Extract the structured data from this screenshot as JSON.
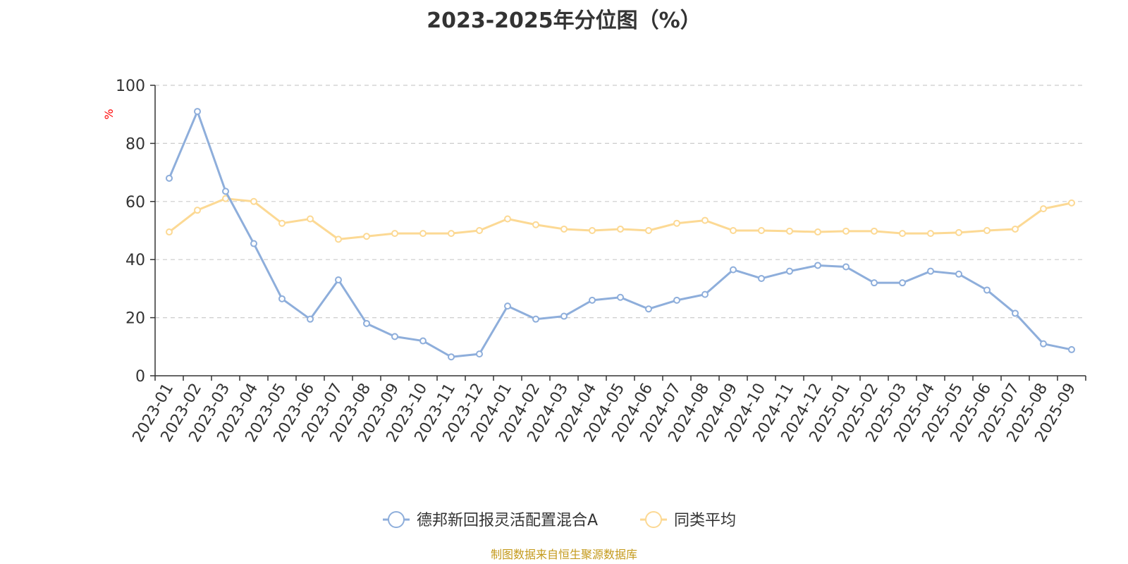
{
  "chart_data": {
    "type": "line",
    "title": "2023-2025年分位图（%）",
    "ylabel": "%",
    "ylim": [
      0,
      100
    ],
    "yticks": [
      0,
      20,
      40,
      60,
      80,
      100
    ],
    "grid": true,
    "legend_position": "bottom",
    "categories": [
      "2023-01",
      "2023-02",
      "2023-03",
      "2023-04",
      "2023-05",
      "2023-06",
      "2023-07",
      "2023-08",
      "2023-09",
      "2023-10",
      "2023-11",
      "2023-12",
      "2024-01",
      "2024-02",
      "2024-03",
      "2024-04",
      "2024-05",
      "2024-06",
      "2024-07",
      "2024-08",
      "2024-09",
      "2024-10",
      "2024-11",
      "2024-12",
      "2025-01",
      "2025-02",
      "2025-03",
      "2025-04",
      "2025-05",
      "2025-06",
      "2025-07",
      "2025-08",
      "2025-09"
    ],
    "series": [
      {
        "name": "德邦新回报灵活配置混合A",
        "color": "#8eaedb",
        "values": [
          68,
          91,
          63.5,
          45.5,
          26.5,
          19.5,
          33,
          18,
          13.5,
          12,
          6.5,
          7.5,
          24,
          19.5,
          20.5,
          26,
          27,
          23,
          26,
          28,
          36.5,
          33.5,
          36,
          38,
          37.5,
          32,
          32,
          36,
          35,
          29.5,
          21.5,
          11,
          9
        ]
      },
      {
        "name": "同类平均",
        "color": "#fcd994",
        "values": [
          49.5,
          57,
          61,
          60,
          52.5,
          54,
          47,
          48,
          49,
          49,
          49,
          50,
          54,
          52,
          50.5,
          50,
          50.5,
          50,
          52.5,
          53.5,
          50,
          50,
          49.8,
          49.5,
          49.8,
          49.8,
          49,
          49,
          49.3,
          50,
          50.5,
          57.5,
          59.5
        ]
      }
    ]
  },
  "footer": "制图数据来自恒生聚源数据库"
}
